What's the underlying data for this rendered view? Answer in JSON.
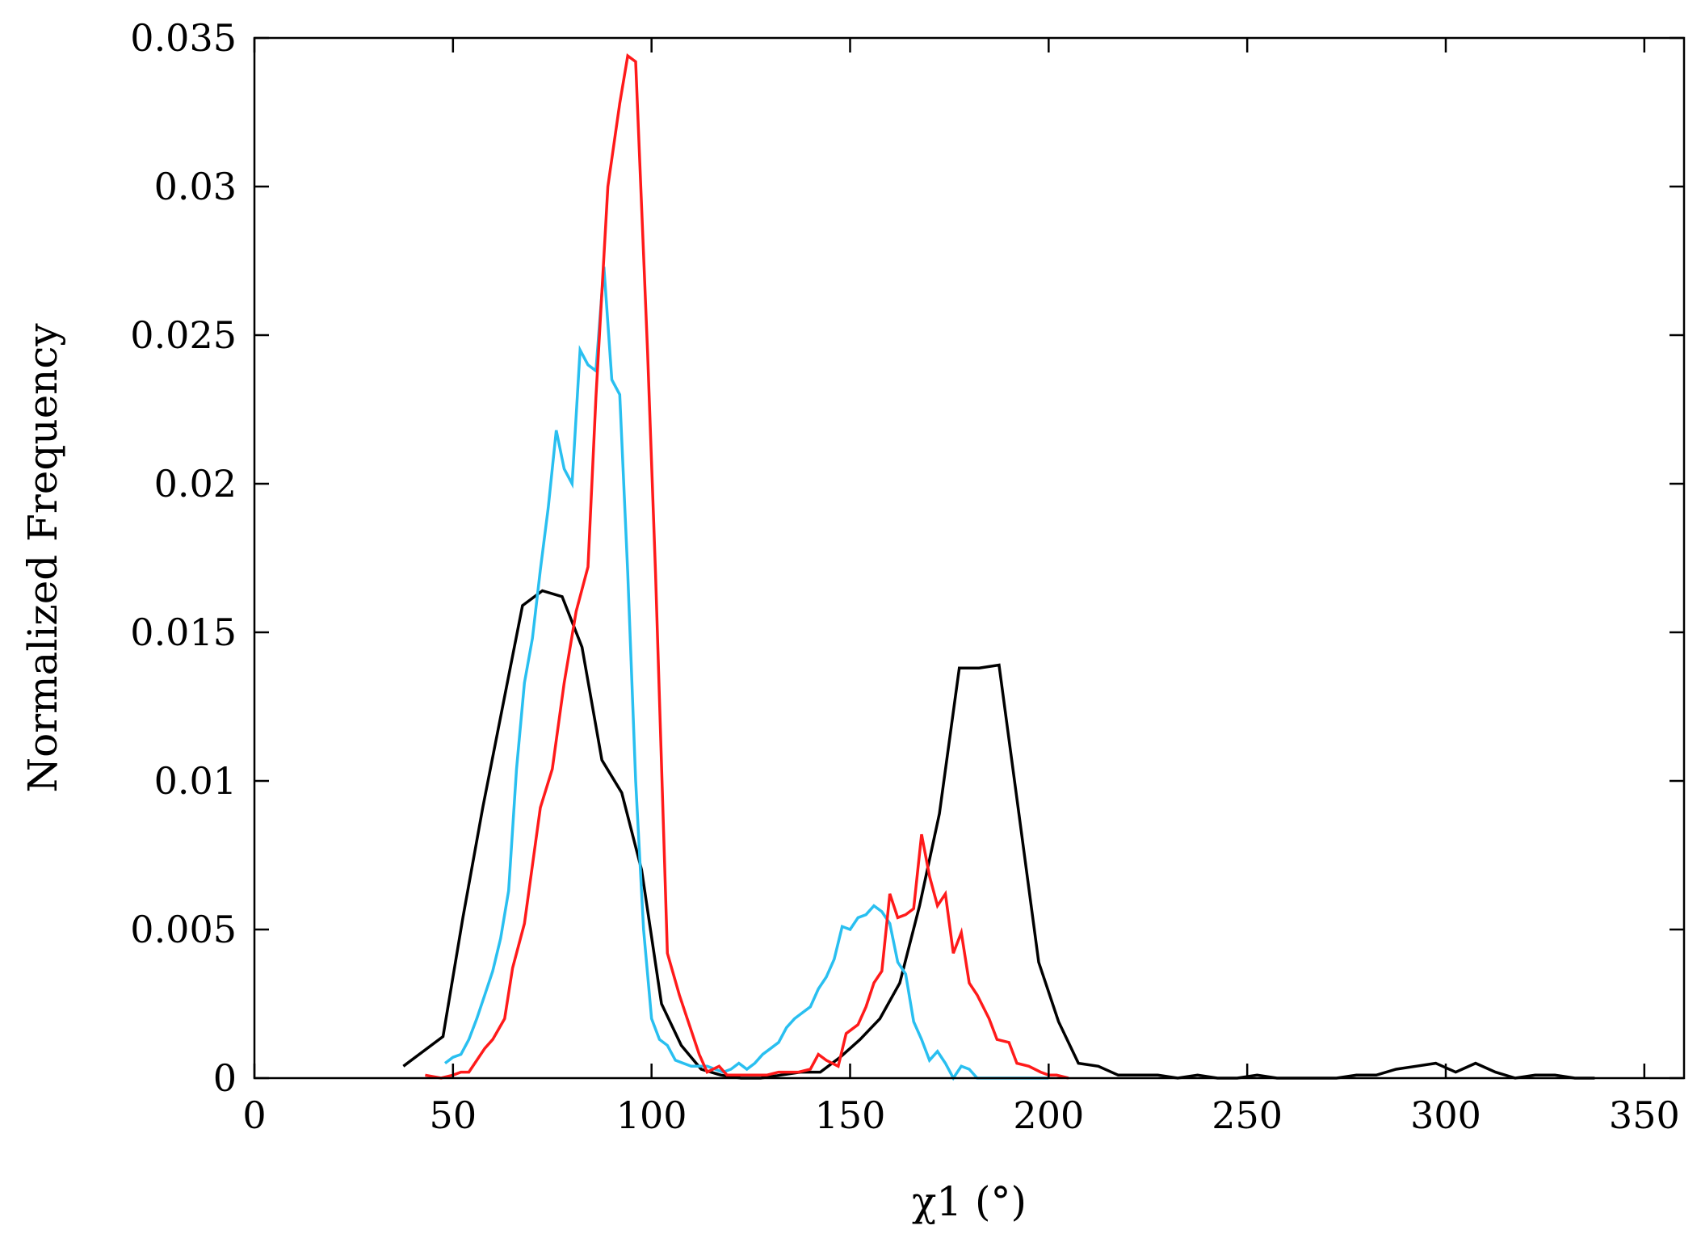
{
  "chart_data": {
    "type": "line",
    "xlabel": "χ1 (°)",
    "ylabel": "Normalized Frequency",
    "xlim": [
      0,
      360
    ],
    "ylim": [
      0,
      0.035
    ],
    "xticks": [
      "0",
      "50",
      "100",
      "150",
      "200",
      "250",
      "300",
      "350"
    ],
    "yticks": [
      "0",
      "0.005",
      "0.01",
      "0.015",
      "0.02",
      "0.025",
      "0.03",
      "0.035"
    ],
    "grid": false,
    "series": [
      {
        "color": "#000000",
        "x": [
          37.5,
          47.5,
          52.5,
          57.5,
          62.5,
          67.5,
          72.5,
          77.5,
          82.5,
          87.5,
          92.5,
          97.5,
          102.5,
          107.5,
          112.5,
          117.5,
          122.5,
          127.5,
          132.5,
          137.5,
          142.5,
          147.5,
          152.5,
          157.5,
          162.5,
          167.5,
          172.5,
          177.5,
          182.5,
          187.5,
          192.5,
          197.5,
          202.5,
          207.5,
          212.5,
          217.5,
          222.5,
          227.5,
          232.5,
          237.5,
          242.5,
          247.5,
          252.5,
          257.5,
          262.5,
          267.5,
          272.5,
          277.5,
          282.5,
          287.5,
          292.5,
          297.5,
          302.5,
          307.5,
          312.5,
          317.5,
          322.5,
          327.5,
          332.5,
          337.5
        ],
        "y": [
          0.0004,
          0.0014,
          0.0054,
          0.0091,
          0.0125,
          0.0159,
          0.0164,
          0.0162,
          0.0145,
          0.0107,
          0.0096,
          0.007,
          0.0025,
          0.0011,
          0.0003,
          0.0001,
          0.0,
          0.0,
          0.0001,
          0.0002,
          0.0002,
          0.0007,
          0.0013,
          0.002,
          0.0032,
          0.0058,
          0.0089,
          0.0138,
          0.0138,
          0.0139,
          0.0089,
          0.0039,
          0.0019,
          0.0005,
          0.0004,
          0.0001,
          0.0001,
          0.0001,
          0.0,
          0.0001,
          0.0,
          0.0,
          0.0001,
          0.0,
          0.0,
          0.0,
          0.0,
          0.0001,
          0.0001,
          0.0003,
          0.0004,
          0.0005,
          0.0002,
          0.0005,
          0.0002,
          0.0,
          0.0001,
          0.0001,
          0.0,
          0.0
        ]
      },
      {
        "color": "#29bff0",
        "x": [
          48,
          50,
          52,
          54,
          56,
          58,
          60,
          62,
          64,
          66,
          68,
          70,
          72,
          74,
          76,
          78,
          80,
          82,
          84,
          86,
          88,
          90,
          92,
          94,
          96,
          98,
          100,
          102,
          104,
          106,
          108,
          110,
          112,
          114,
          116,
          118,
          120,
          122,
          124,
          126,
          128,
          130,
          132,
          134,
          136,
          138,
          140,
          142,
          144,
          146,
          148,
          150,
          152,
          154,
          156,
          158,
          160,
          162,
          164,
          166,
          168,
          170,
          172,
          174,
          176,
          178,
          180,
          182,
          184,
          186,
          188,
          190,
          192,
          194,
          196,
          198,
          200
        ],
        "y": [
          0.0005,
          0.0007,
          0.0008,
          0.0013,
          0.002,
          0.0028,
          0.0036,
          0.0047,
          0.0063,
          0.0104,
          0.0133,
          0.0148,
          0.0171,
          0.0192,
          0.0218,
          0.0205,
          0.02,
          0.0245,
          0.024,
          0.0238,
          0.0273,
          0.0235,
          0.023,
          0.017,
          0.01,
          0.005,
          0.002,
          0.0013,
          0.0011,
          0.0006,
          0.0005,
          0.0004,
          0.0004,
          0.0004,
          0.0003,
          0.0002,
          0.0003,
          0.0005,
          0.0003,
          0.0005,
          0.0008,
          0.001,
          0.0012,
          0.0017,
          0.002,
          0.0022,
          0.0024,
          0.003,
          0.0034,
          0.004,
          0.0051,
          0.005,
          0.0054,
          0.0055,
          0.0058,
          0.0056,
          0.0052,
          0.0039,
          0.0035,
          0.0019,
          0.0013,
          0.0006,
          0.0009,
          0.0005,
          0.0,
          0.0004,
          0.0003,
          0.0,
          0.0,
          0.0,
          0.0,
          0.0,
          0.0,
          0.0,
          0.0,
          0.0,
          0.0
        ]
      },
      {
        "color": "#ff1a1a",
        "x": [
          43,
          47,
          50,
          52,
          54,
          58,
          60,
          63,
          65,
          68,
          72,
          75,
          78,
          81,
          84,
          86,
          89,
          92,
          94,
          96,
          99,
          101,
          104,
          107,
          109,
          112,
          114,
          117,
          119,
          122,
          124,
          127,
          129,
          132,
          135,
          137,
          140,
          142,
          144,
          147,
          149,
          152,
          154,
          156,
          158,
          160,
          162,
          164,
          166,
          168,
          170,
          172,
          174,
          176,
          178,
          180,
          182,
          185,
          187,
          190,
          192,
          195,
          198,
          200,
          202,
          205
        ],
        "y": [
          0.0001,
          0.0,
          0.0001,
          0.0002,
          0.0002,
          0.001,
          0.0013,
          0.002,
          0.0037,
          0.0052,
          0.0091,
          0.0104,
          0.0133,
          0.0157,
          0.0172,
          0.0229,
          0.03,
          0.0328,
          0.0344,
          0.0342,
          0.0244,
          0.017,
          0.0042,
          0.0028,
          0.002,
          0.0008,
          0.0002,
          0.0004,
          0.0001,
          0.0001,
          0.0001,
          0.0001,
          0.0001,
          0.0002,
          0.0002,
          0.0002,
          0.0003,
          0.0008,
          0.0006,
          0.0004,
          0.0015,
          0.0018,
          0.0024,
          0.0032,
          0.0036,
          0.0062,
          0.0054,
          0.0055,
          0.0057,
          0.0082,
          0.0068,
          0.0058,
          0.0062,
          0.0042,
          0.0049,
          0.0032,
          0.0028,
          0.002,
          0.0013,
          0.0012,
          0.0005,
          0.0004,
          0.0002,
          0.0001,
          0.0001,
          0.0
        ]
      }
    ]
  }
}
